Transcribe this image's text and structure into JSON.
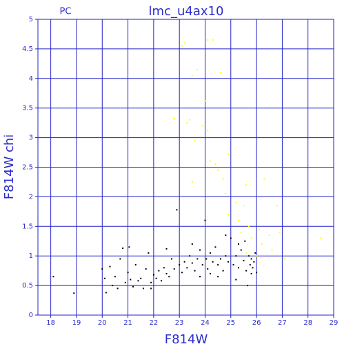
{
  "chart_data": {
    "type": "scatter",
    "title": "lmc_u4ax10",
    "subtitle": "PC",
    "x_label": "F814W",
    "y_label": "F814W chi",
    "xlim": [
      17.5,
      29
    ],
    "ylim": [
      0,
      5
    ],
    "xticks": [
      18,
      19,
      20,
      21,
      22,
      23,
      24,
      25,
      26,
      27,
      28,
      29
    ],
    "yticks": [
      0,
      0.5,
      1,
      1.5,
      2,
      2.5,
      3,
      3.5,
      4,
      4.5,
      5
    ],
    "grid": true,
    "grid_color": "#2020c8",
    "series": [
      {
        "color": "#000000",
        "x": [
          18.1,
          18.9,
          20.0,
          20.1,
          20.15,
          20.3,
          20.4,
          20.5,
          20.6,
          20.7,
          20.8,
          20.9,
          21.0,
          21.05,
          21.1,
          21.2,
          21.3,
          21.4,
          21.5,
          21.6,
          21.7,
          21.8,
          21.9,
          22.0,
          22.1,
          22.2,
          22.3,
          22.4,
          22.5,
          22.6,
          22.7,
          22.8,
          22.9,
          23.0,
          23.1,
          23.2,
          23.3,
          23.4,
          23.5,
          23.6,
          23.7,
          23.8,
          23.9,
          24.0,
          24.05,
          24.1,
          24.2,
          24.3,
          24.4,
          24.5,
          24.6,
          24.7,
          24.8,
          24.9,
          25.0,
          25.1,
          25.2,
          25.3,
          25.4,
          25.5,
          25.55,
          25.6,
          25.65,
          25.7,
          25.75,
          25.8,
          25.85,
          25.9,
          25.95,
          26.0,
          23.5,
          24.5,
          25.2,
          24.8,
          22.5,
          25.8,
          24.2,
          23.8,
          25.3,
          21.9
        ],
        "values": [
          0.65,
          0.37,
          0.78,
          0.62,
          0.38,
          0.82,
          0.5,
          0.65,
          0.45,
          0.95,
          1.13,
          0.55,
          0.72,
          1.15,
          0.6,
          0.48,
          0.85,
          0.58,
          0.62,
          0.45,
          0.78,
          1.05,
          0.55,
          0.68,
          0.62,
          0.75,
          0.58,
          0.8,
          0.7,
          0.65,
          0.95,
          0.78,
          1.78,
          0.85,
          0.72,
          0.9,
          0.8,
          1.0,
          0.88,
          0.75,
          0.95,
          1.1,
          0.85,
          1.6,
          0.95,
          0.78,
          1.05,
          0.9,
          1.15,
          0.85,
          0.95,
          0.75,
          1.0,
          0.9,
          1.3,
          0.85,
          1.0,
          0.8,
          1.1,
          0.92,
          1.25,
          0.75,
          0.5,
          1.0,
          0.85,
          0.95,
          0.8,
          0.9,
          1.05,
          0.72,
          1.2,
          0.65,
          0.6,
          1.35,
          1.12,
          0.7,
          0.7,
          0.65,
          1.2,
          0.45
        ]
      },
      {
        "color": "#ffff00",
        "x": [
          23.2,
          23.1,
          24.1,
          24.3,
          23.7,
          24.6,
          23.5,
          24.0,
          23.4,
          23.3,
          22.8,
          23.9,
          24.1,
          23.6,
          24.9,
          24.2,
          24.4,
          24.5,
          24.7,
          23.5,
          25.6,
          26.3,
          24.8,
          25.2,
          25.5,
          25.3,
          24.9,
          25.7,
          25.4,
          26.1,
          26.5,
          26.8,
          26.9,
          26.2,
          26.6,
          27.1,
          28.5,
          25.8,
          26.0,
          25.6
        ],
        "values": [
          4.6,
          4.55,
          4.65,
          4.65,
          4.15,
          4.1,
          4.05,
          3.62,
          3.3,
          3.25,
          3.32,
          3.2,
          3.12,
          2.95,
          2.72,
          2.6,
          2.55,
          2.45,
          2.3,
          2.25,
          2.2,
          2.3,
          2.05,
          1.9,
          1.85,
          1.6,
          1.7,
          1.5,
          1.4,
          1.45,
          1.35,
          1.85,
          1.4,
          1.2,
          1.1,
          0.95,
          1.3,
          1.3,
          1.0,
          1.05
        ]
      }
    ]
  }
}
